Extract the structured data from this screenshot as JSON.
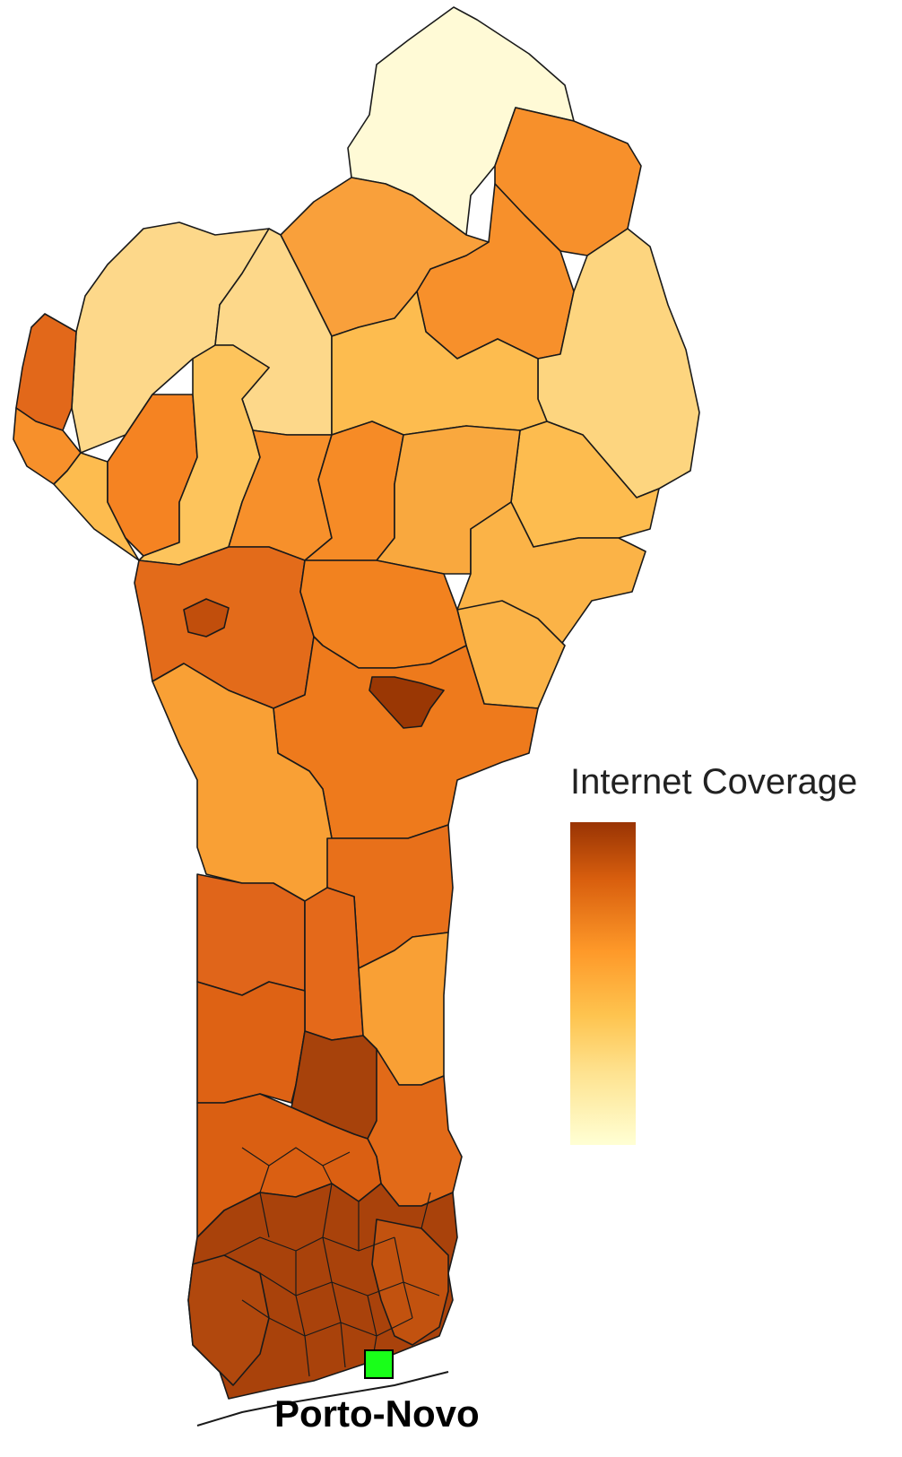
{
  "legend": {
    "title": "Internet Coverage",
    "scale_low_color": "#ffffd4",
    "scale_mid_low_color": "#fee391",
    "scale_mid_color": "#fec44f",
    "scale_mid_high_color": "#fe9929",
    "scale_high_color": "#d95f0e",
    "scale_max_color": "#993404"
  },
  "capital": {
    "name": "Porto-Novo",
    "marker_color": "#19ff19"
  },
  "regions": [
    {
      "name": "far-north",
      "color": "#fffad6"
    },
    {
      "name": "north-east-upper",
      "color": "#f7902b"
    },
    {
      "name": "north-east-central",
      "color": "#f7902b"
    },
    {
      "name": "north-central",
      "color": "#f9a03b"
    },
    {
      "name": "north-east-lower",
      "color": "#fdd57f"
    },
    {
      "name": "north-west-upper",
      "color": "#fdd88a"
    },
    {
      "name": "north-west-mid",
      "color": "#fdd88a"
    },
    {
      "name": "central-plateau",
      "color": "#fdbc4f"
    },
    {
      "name": "east-plateau",
      "color": "#fdbc4f"
    },
    {
      "name": "west-edge-upper",
      "color": "#e2681a"
    },
    {
      "name": "west-edge-lower",
      "color": "#f7902b"
    },
    {
      "name": "west-small",
      "color": "#fdbc4f"
    },
    {
      "name": "west-inner",
      "color": "#f58322"
    },
    {
      "name": "west-strip",
      "color": "#fdc45c"
    },
    {
      "name": "mid-west",
      "color": "#f7902b"
    },
    {
      "name": "mid-center",
      "color": "#f68b26"
    },
    {
      "name": "mid-east",
      "color": "#f9a83e"
    },
    {
      "name": "east-lower",
      "color": "#fbb347"
    },
    {
      "name": "east-pocket",
      "color": "#fbb347"
    },
    {
      "name": "central-west",
      "color": "#e36b1a"
    },
    {
      "name": "central-west-dot",
      "color": "#c14e0c"
    },
    {
      "name": "central",
      "color": "#f2821f"
    },
    {
      "name": "central-south",
      "color": "#ee7a1c"
    },
    {
      "name": "central-hotspot",
      "color": "#9a3704"
    },
    {
      "name": "south-west-large",
      "color": "#f9a035"
    },
    {
      "name": "south-central",
      "color": "#e8701a"
    },
    {
      "name": "south-west-1",
      "color": "#e0651a"
    },
    {
      "name": "south-mid-1",
      "color": "#e4691a"
    },
    {
      "name": "south-east-1",
      "color": "#f9a035"
    },
    {
      "name": "south-west-2",
      "color": "#de6214"
    },
    {
      "name": "south-mid-2",
      "color": "#a7420b"
    },
    {
      "name": "south-east-2",
      "color": "#e26a18"
    },
    {
      "name": "south-west-3",
      "color": "#da5f12"
    },
    {
      "name": "coast-zone",
      "color": "#a9420b"
    },
    {
      "name": "coast-west",
      "color": "#b1480d"
    },
    {
      "name": "coast-east",
      "color": "#c2520f"
    }
  ]
}
